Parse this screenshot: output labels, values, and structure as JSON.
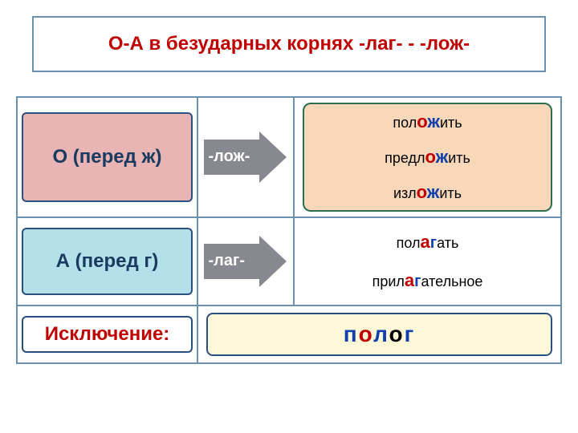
{
  "colors": {
    "grid_border": "#6b8fb0",
    "title_border": "#6b8fb0",
    "title_text": "#c00000",
    "badge1_bg": "#e8b4b4",
    "badge1_border": "#2a5080",
    "badge1_text": "#1a3a60",
    "badge2_bg": "#b4e0ea",
    "badge2_border": "#2a5080",
    "badge2_text": "#1a3a60",
    "badge3_bg": "#ffffff",
    "badge3_border": "#2a5080",
    "badge3_text": "#c00000",
    "arrow_fill": "#888890",
    "arrow_label": "#ffffff",
    "ex_box_bg": "#f8d8b8",
    "ex_box_border": "#2a7050",
    "exclusion_bg": "#fff8d8",
    "exclusion_border": "#2a5080",
    "red": "#c00000",
    "blue": "#1040b0",
    "black": "#000000"
  },
  "title": "О-А в безударных корнях -лаг- - -лож-",
  "rows": [
    {
      "left_label": "О (перед ж)",
      "arrow_label": "-лож-",
      "examples": [
        {
          "pre": "пол",
          "v": "о",
          "c": "ж",
          "post": "ить"
        },
        {
          "pre": "предл",
          "v": "о",
          "c": "ж",
          "post": "ить"
        },
        {
          "pre": "изл",
          "v": "о",
          "c": "ж",
          "post": "ить"
        }
      ]
    },
    {
      "left_label": "А (перед г)",
      "arrow_label": "-лаг-",
      "examples": [
        {
          "pre": "пол",
          "v": "а",
          "c": "г",
          "post": "ать"
        },
        {
          "pre": "прил",
          "v": "а",
          "c": "г",
          "post": "ательное"
        }
      ]
    }
  ],
  "exception": {
    "label": "Исключение:",
    "word": {
      "p1": "п",
      "p2": "о",
      "p3": "л",
      "p4": "о",
      "p5": "г"
    }
  }
}
